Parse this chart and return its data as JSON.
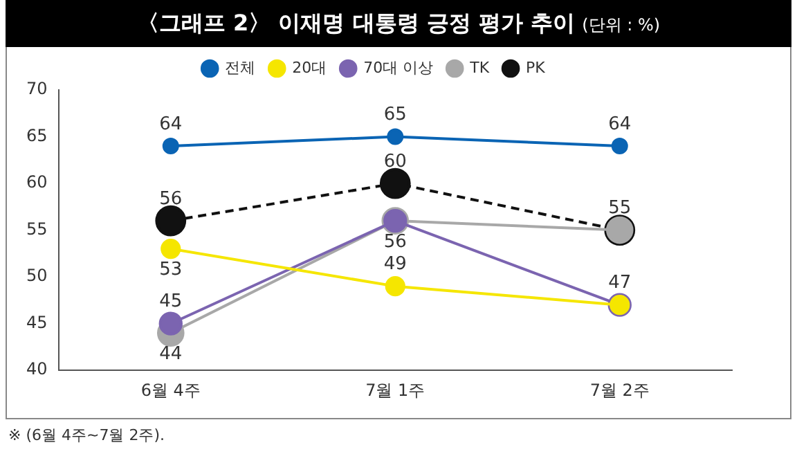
{
  "chart_data": {
    "type": "line",
    "title": "〈그래프 2〉 이재명 대통령 긍정 평가 추이",
    "subtitle": "(단위 : %)",
    "categories": [
      "6월 4주",
      "7월 1주",
      "7월 2주"
    ],
    "series": [
      {
        "name": "전체",
        "color": "#0a64b4",
        "values": [
          64,
          65,
          64
        ],
        "value_labels": [
          "64",
          "65",
          "64"
        ]
      },
      {
        "name": "20대",
        "color": "#f5e600",
        "values": [
          53,
          49,
          47
        ],
        "value_labels": [
          "53",
          "49",
          "47"
        ]
      },
      {
        "name": "70대 이상",
        "color": "#7b64b0",
        "values": [
          45,
          56,
          47
        ],
        "value_labels": [
          "45",
          "56",
          null
        ]
      },
      {
        "name": "TK",
        "color": "#a8a8a8",
        "values": [
          44,
          56,
          55
        ],
        "value_labels": [
          "44",
          null,
          null
        ]
      },
      {
        "name": "PK",
        "color": "#111111",
        "values": [
          56,
          60,
          55
        ],
        "value_labels": [
          "56",
          "60",
          "55"
        ],
        "line_style": "dashed"
      }
    ],
    "ylim": [
      40,
      70
    ],
    "yticks": [
      40,
      45,
      50,
      55,
      60,
      65,
      70
    ],
    "grid": false,
    "legend": "top",
    "marker": "circle",
    "annotations": [
      "※ (6월 4주~7월 2주)."
    ]
  }
}
